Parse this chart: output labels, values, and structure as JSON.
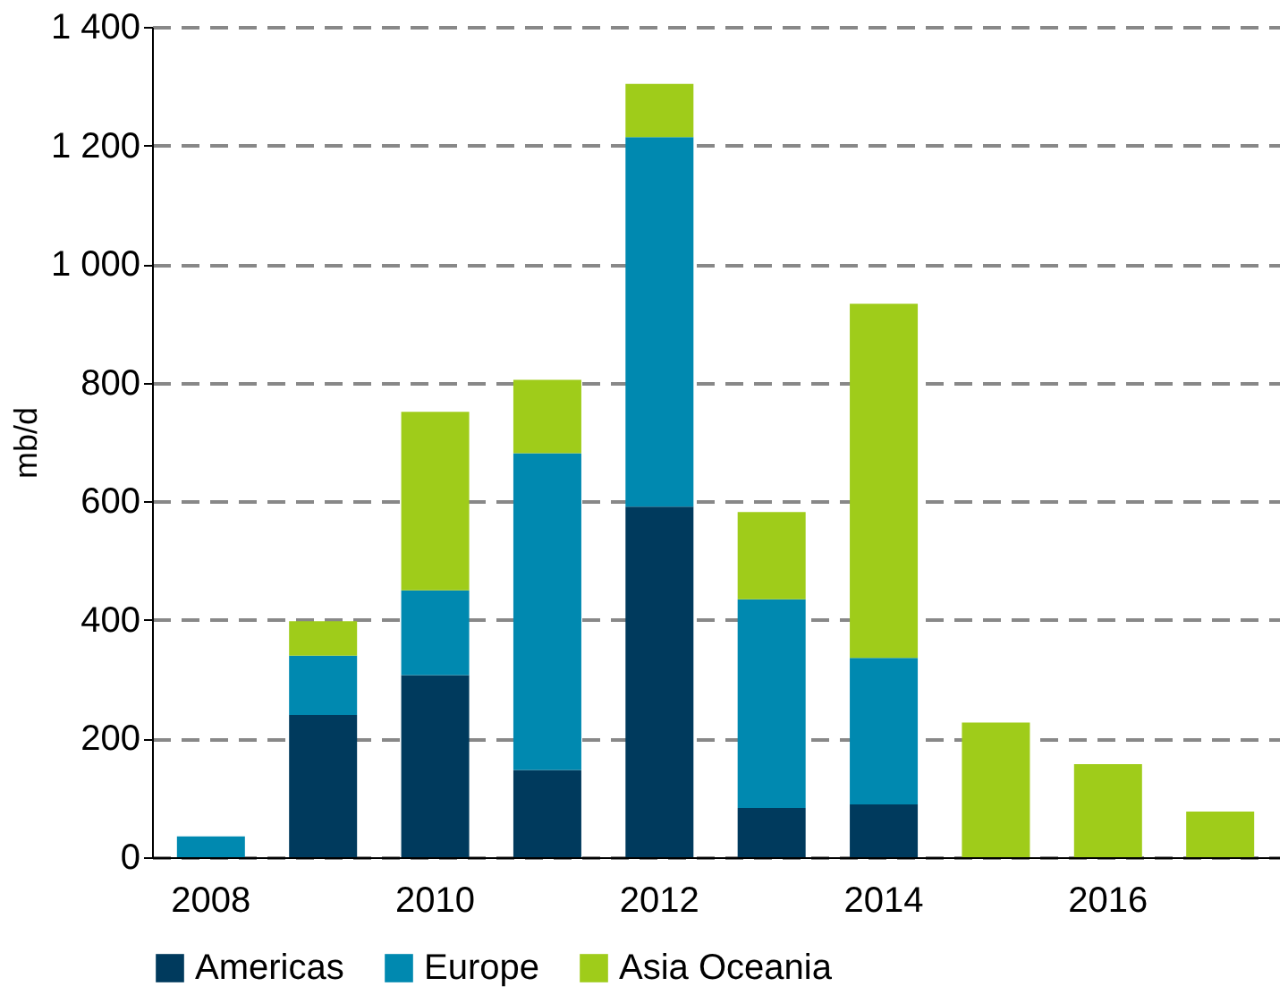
{
  "chart_data": {
    "type": "bar",
    "stacked": true,
    "ylabel": "mb/d",
    "categories": [
      "2008",
      null,
      "2010",
      null,
      "2012",
      null,
      "2014",
      null,
      "2016",
      null
    ],
    "series": [
      {
        "name": "Americas",
        "color": "#003a5d",
        "values": [
          0,
          240,
          307,
          147,
          591,
          83,
          89,
          0,
          0,
          0
        ]
      },
      {
        "name": "Europe",
        "color": "#0089b0",
        "values": [
          35,
          100,
          143,
          534,
          623,
          352,
          247,
          0,
          0,
          0
        ]
      },
      {
        "name": "Asia Oceania",
        "color": "#9fcc1a",
        "values": [
          0,
          58,
          301,
          124,
          90,
          147,
          597,
          227,
          157,
          77
        ]
      }
    ],
    "ylim": [
      0,
      1400
    ],
    "yticks": [
      0,
      200,
      400,
      600,
      800,
      {
        "value": 1000,
        "label": "1 000"
      },
      {
        "value": 1200,
        "label": "1 200"
      },
      {
        "value": 1400,
        "label": "1 400"
      }
    ],
    "grid": "y",
    "legend": "bottom"
  }
}
